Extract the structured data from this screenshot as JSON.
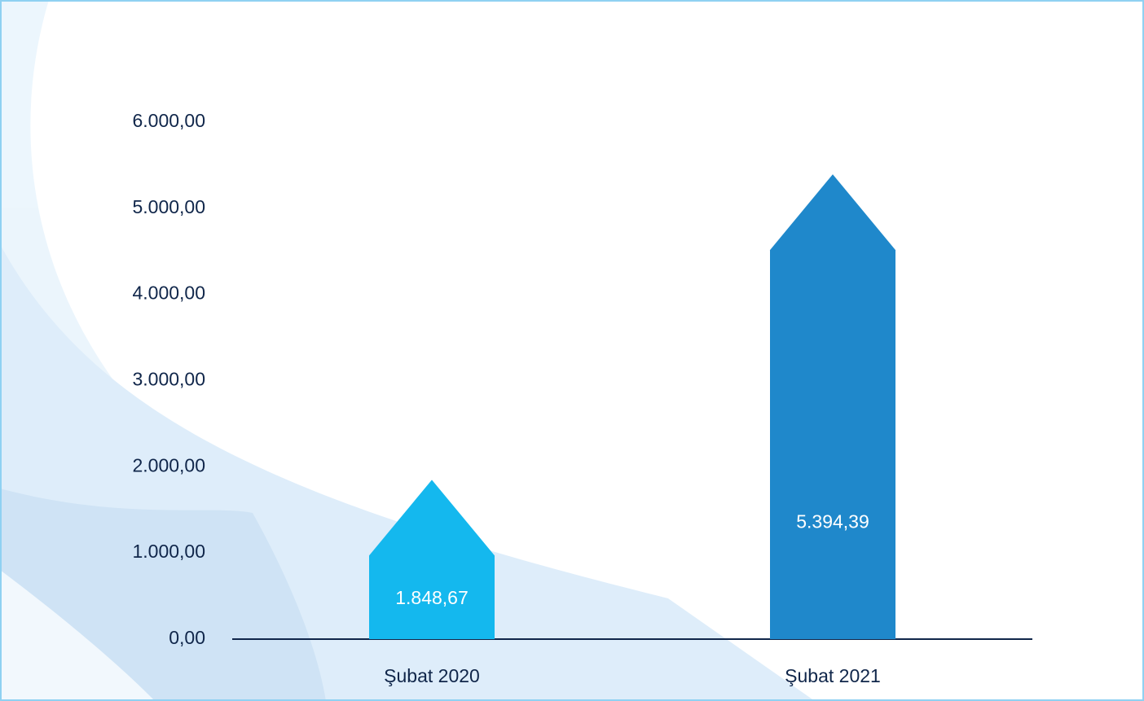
{
  "chart_data": {
    "type": "bar",
    "categories": [
      "Şubat 2020",
      "Şubat 2021"
    ],
    "values": [
      1848.67,
      5394.39
    ],
    "value_labels": [
      "1.848,67",
      "5.394,39"
    ],
    "colors": [
      "#14b8ee",
      "#1f88cb"
    ],
    "ylim": [
      0,
      6000
    ],
    "yticks": [
      {
        "value": 0,
        "label": "0,00"
      },
      {
        "value": 1000,
        "label": "1.000,00"
      },
      {
        "value": 2000,
        "label": "2.000,00"
      },
      {
        "value": 3000,
        "label": "3.000,00"
      },
      {
        "value": 4000,
        "label": "4.000,00"
      },
      {
        "value": 5000,
        "label": "5.000,00"
      },
      {
        "value": 6000,
        "label": "6.000,00"
      }
    ],
    "grid": false
  }
}
